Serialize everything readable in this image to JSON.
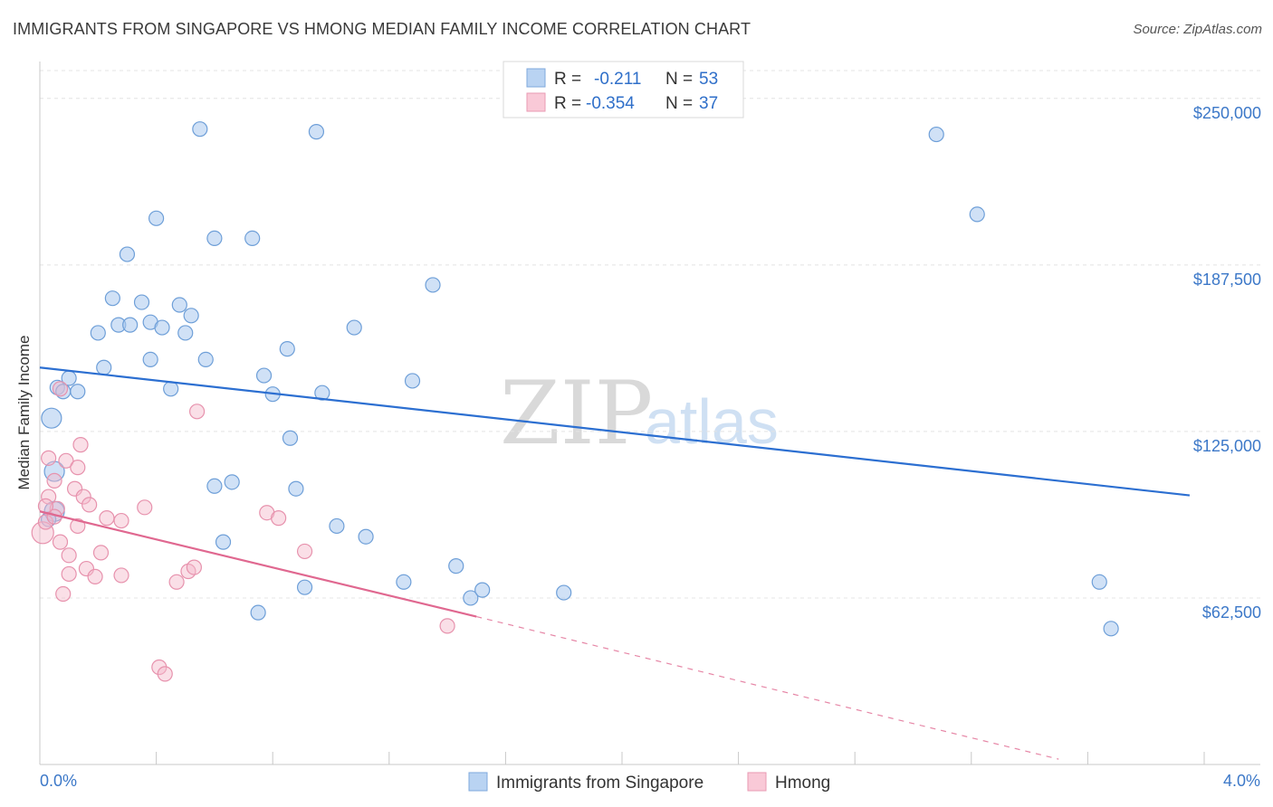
{
  "title": "IMMIGRANTS FROM SINGAPORE VS HMONG MEDIAN FAMILY INCOME CORRELATION CHART",
  "source": "Source: ZipAtlas.com",
  "watermark": {
    "zip": "ZIP",
    "atlas": "atlas"
  },
  "legend": {
    "r_label": "R =",
    "n_label": "N =",
    "rows": [
      {
        "r": "-0.211",
        "n": "53"
      },
      {
        "r": "-0.354",
        "n": "37"
      }
    ]
  },
  "chart_data": {
    "type": "scatter",
    "title": "IMMIGRANTS FROM SINGAPORE VS HMONG MEDIAN FAMILY INCOME CORRELATION CHART",
    "xlabel": "",
    "ylabel": "Median Family Income",
    "xlim": [
      0.0,
      4.0
    ],
    "ylim": [
      0,
      262500
    ],
    "x_tick_labels": [
      "0.0%",
      "4.0%"
    ],
    "y_ticks": [
      62500,
      125000,
      187500,
      250000
    ],
    "y_tick_labels": [
      "$62,500",
      "$125,000",
      "$187,500",
      "$250,000"
    ],
    "series": [
      {
        "name": "Immigrants from Singapore",
        "color": "#a9c8ee",
        "line_color": "#2c6fd1",
        "trend": {
          "x0": 0.0,
          "y0": 149000,
          "x1": 3.95,
          "y1": 101000
        },
        "points": [
          [
            0.04,
            130000
          ],
          [
            0.05,
            110000
          ],
          [
            0.05,
            95000
          ],
          [
            0.06,
            141500
          ],
          [
            0.08,
            140000
          ],
          [
            0.1,
            145000
          ],
          [
            0.13,
            140000
          ],
          [
            0.2,
            162000
          ],
          [
            0.22,
            149000
          ],
          [
            0.25,
            175000
          ],
          [
            0.27,
            165000
          ],
          [
            0.31,
            165000
          ],
          [
            0.3,
            191500
          ],
          [
            0.35,
            173500
          ],
          [
            0.38,
            166000
          ],
          [
            0.38,
            152000
          ],
          [
            0.4,
            205000
          ],
          [
            0.42,
            164000
          ],
          [
            0.45,
            141000
          ],
          [
            0.48,
            172500
          ],
          [
            0.5,
            162000
          ],
          [
            0.52,
            168500
          ],
          [
            0.55,
            238500
          ],
          [
            0.57,
            152000
          ],
          [
            0.6,
            197500
          ],
          [
            0.6,
            104500
          ],
          [
            0.63,
            83500
          ],
          [
            0.66,
            106000
          ],
          [
            0.73,
            197500
          ],
          [
            0.75,
            57000
          ],
          [
            0.77,
            146000
          ],
          [
            0.8,
            139000
          ],
          [
            0.85,
            156000
          ],
          [
            0.86,
            122500
          ],
          [
            0.88,
            103500
          ],
          [
            0.91,
            66500
          ],
          [
            0.95,
            237500
          ],
          [
            0.97,
            139500
          ],
          [
            1.02,
            89500
          ],
          [
            1.08,
            164000
          ],
          [
            1.12,
            85500
          ],
          [
            1.25,
            68500
          ],
          [
            1.28,
            144000
          ],
          [
            1.35,
            180000
          ],
          [
            1.43,
            74500
          ],
          [
            1.48,
            62500
          ],
          [
            1.52,
            65500
          ],
          [
            1.8,
            64500
          ],
          [
            3.08,
            236500
          ],
          [
            3.22,
            206500
          ],
          [
            3.64,
            68500
          ],
          [
            3.68,
            51000
          ],
          [
            0.03,
            92000
          ]
        ]
      },
      {
        "name": "Hmong",
        "color": "#f5b8ca",
        "line_color": "#e06890",
        "trend": {
          "x0": 0.0,
          "y0": 95000,
          "x1": 1.5,
          "y1": 55500
        },
        "trend_dash": {
          "x0": 1.5,
          "y0": 55500,
          "x1": 3.5,
          "y1": 2000
        },
        "points": [
          [
            0.01,
            87000
          ],
          [
            0.02,
            91000
          ],
          [
            0.03,
            115000
          ],
          [
            0.03,
            100500
          ],
          [
            0.05,
            106500
          ],
          [
            0.06,
            96000
          ],
          [
            0.07,
            83500
          ],
          [
            0.07,
            141000
          ],
          [
            0.08,
            64000
          ],
          [
            0.09,
            114000
          ],
          [
            0.1,
            78500
          ],
          [
            0.1,
            71500
          ],
          [
            0.12,
            103500
          ],
          [
            0.13,
            89500
          ],
          [
            0.13,
            111500
          ],
          [
            0.14,
            120000
          ],
          [
            0.15,
            100500
          ],
          [
            0.16,
            73500
          ],
          [
            0.17,
            97500
          ],
          [
            0.19,
            70500
          ],
          [
            0.21,
            79500
          ],
          [
            0.23,
            92500
          ],
          [
            0.28,
            91500
          ],
          [
            0.28,
            71000
          ],
          [
            0.36,
            96500
          ],
          [
            0.41,
            36500
          ],
          [
            0.43,
            34000
          ],
          [
            0.47,
            68500
          ],
          [
            0.51,
            72500
          ],
          [
            0.53,
            74000
          ],
          [
            0.54,
            132500
          ],
          [
            0.78,
            94500
          ],
          [
            0.82,
            92500
          ],
          [
            0.91,
            80000
          ],
          [
            1.4,
            52000
          ],
          [
            0.05,
            93000
          ],
          [
            0.02,
            97000
          ]
        ]
      }
    ]
  }
}
